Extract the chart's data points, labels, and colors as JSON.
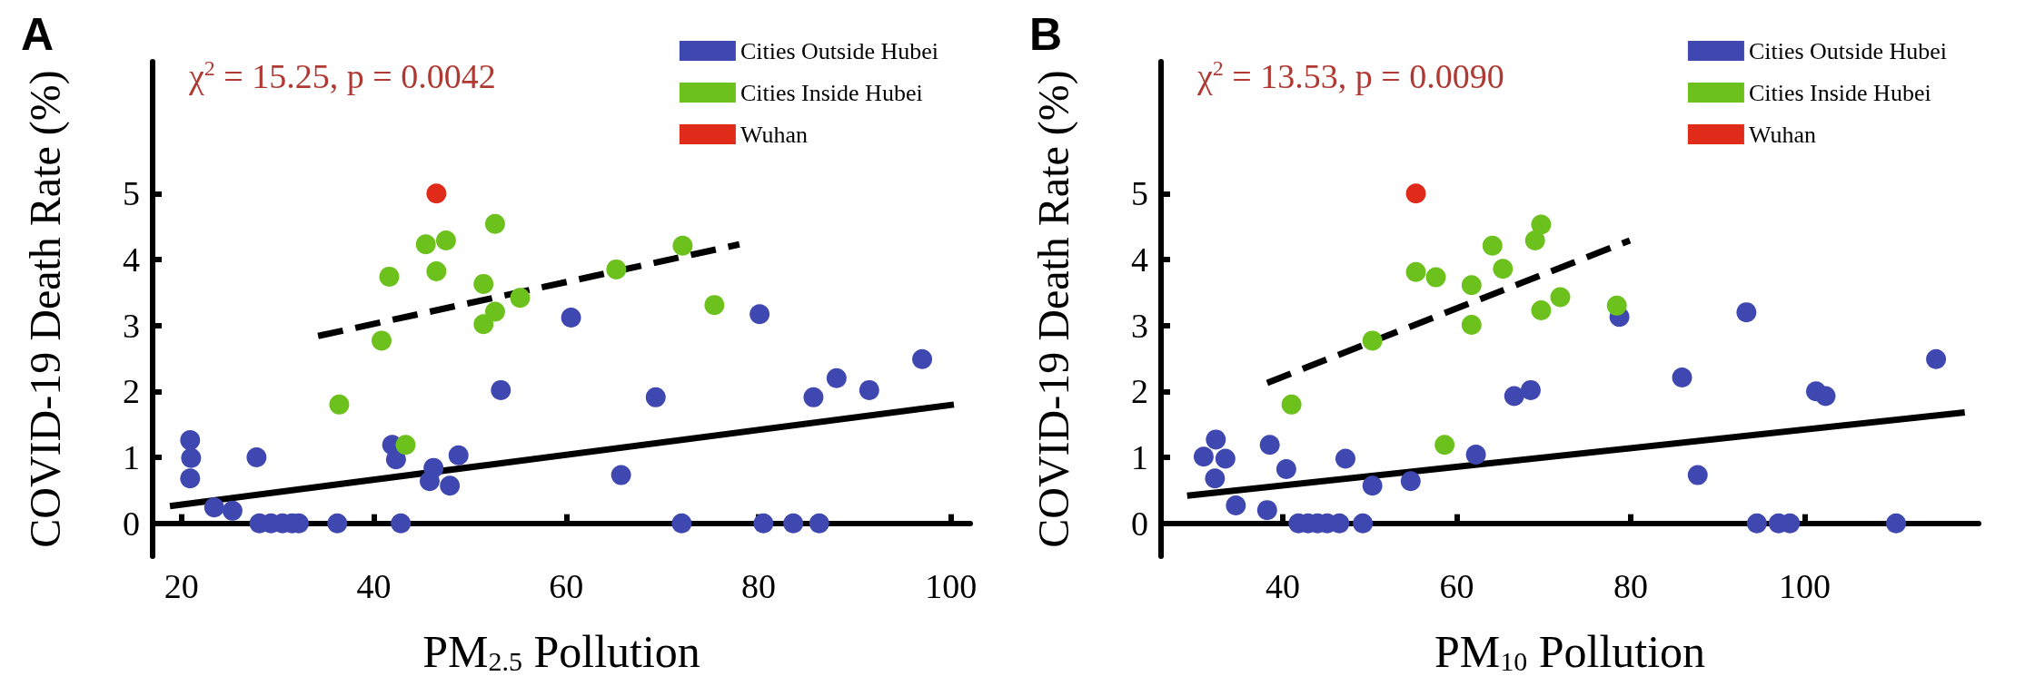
{
  "chart_data": [
    {
      "type": "scatter",
      "title": "A",
      "xlabel": "PM$_{2.5}$ Pollution",
      "ylabel": "COVID-19 Death Rate (%)",
      "annotations": [
        "χ$^{2}$ = 15.25, p = 0.0042"
      ],
      "xlim": [
        17,
        102
      ],
      "ylim": [
        -0.5,
        7
      ],
      "xticks": [
        20,
        40,
        60,
        80,
        100
      ],
      "yticks": [
        0,
        1,
        2,
        3,
        4,
        5
      ],
      "legend": "top right",
      "marker": "circle",
      "series": [
        {
          "name": "Cities Outside Hubei",
          "color": "#3f48b0",
          "x": [
            20.9,
            21.0,
            20.9,
            23.4,
            25.3,
            27.8,
            28.1,
            29.3,
            30.5,
            31.5,
            32.2,
            36.2,
            41.9,
            42.3,
            42.8,
            46.2,
            45.8,
            47.9,
            48.8,
            53.2,
            60.5,
            69.3,
            65.7,
            72.0,
            80.1,
            80.5,
            83.6,
            86.3,
            85.7,
            88.1,
            91.5,
            97.0
          ],
          "values": [
            1.26,
            0.99,
            0.68,
            0.24,
            0.19,
            1.0,
            0,
            0,
            0,
            0,
            0,
            0,
            1.19,
            0.97,
            0,
            0.84,
            0.64,
            0.57,
            1.03,
            2.02,
            3.12,
            1.91,
            0.73,
            0,
            3.17,
            0,
            0,
            0,
            1.91,
            2.2,
            2.02,
            2.49
          ]
        },
        {
          "name": "Cities Inside Hubei",
          "color": "#6cc11c",
          "x": [
            36.4,
            40.8,
            41.6,
            43.3,
            45.4,
            47.5,
            46.5,
            51.4,
            52.6,
            51.4,
            52.6,
            55.2,
            65.2,
            72.1,
            75.4
          ],
          "values": [
            1.8,
            2.77,
            3.74,
            1.19,
            4.23,
            4.29,
            3.82,
            3.63,
            4.54,
            3.02,
            3.21,
            3.42,
            3.85,
            4.21,
            3.31
          ]
        },
        {
          "name": "Wuhan",
          "color": "#e02a1a",
          "x": [
            46.5
          ],
          "values": [
            5.0
          ]
        },
        {
          "type": "line",
          "color": "#000000",
          "marker": "none",
          "line_style": "solid",
          "x": [
            18.8,
            100.3
          ],
          "values": [
            0.26,
            1.8
          ]
        },
        {
          "type": "line",
          "color": "#000000",
          "marker": "none",
          "line_style": "dashed",
          "x": [
            34.2,
            78.0
          ],
          "values": [
            2.84,
            4.23
          ]
        }
      ]
    },
    {
      "type": "scatter",
      "title": "B",
      "xlabel": "PM$_{10}$ Pollution",
      "ylabel": "COVID-19 Death Rate (%)",
      "annotations": [
        "χ$^{2}$ = 13.53, p = 0.0090"
      ],
      "xlim": [
        26,
        120
      ],
      "ylim": [
        -0.5,
        7
      ],
      "xticks": [
        40,
        60,
        80,
        100
      ],
      "yticks": [
        0,
        1,
        2,
        3,
        4,
        5
      ],
      "legend": "top right",
      "marker": "circle",
      "series": [
        {
          "name": "Cities Outside Hubei",
          "color": "#3f48b0",
          "x": [
            30.9,
            32.3,
            33.4,
            32.2,
            34.6,
            38.5,
            38.2,
            40.4,
            41.8,
            42.9,
            44.0,
            45.1,
            46.5,
            47.2,
            49.2,
            50.3,
            54.7,
            62.2,
            66.6,
            68.5,
            78.7,
            85.9,
            87.7,
            93.3,
            94.5,
            97.0,
            98.3,
            101.3,
            102.4,
            110.5,
            115.1
          ],
          "values": [
            1.01,
            1.27,
            0.98,
            0.68,
            0.27,
            1.19,
            0.2,
            0.82,
            0,
            0,
            0,
            0,
            0,
            0.98,
            0,
            0.57,
            0.64,
            1.04,
            1.93,
            2.02,
            3.13,
            2.21,
            0.73,
            3.2,
            0,
            0,
            0,
            2.0,
            1.93,
            0,
            2.49
          ]
        },
        {
          "name": "Cities Inside Hubei",
          "color": "#6cc11c",
          "x": [
            41.0,
            50.3,
            55.3,
            57.6,
            58.6,
            61.7,
            61.7,
            64.1,
            65.3,
            69.0,
            69.7,
            69.7,
            71.9,
            78.4
          ],
          "values": [
            1.8,
            2.77,
            3.81,
            3.73,
            1.19,
            3.61,
            3.01,
            4.21,
            3.86,
            4.29,
            4.53,
            3.23,
            3.43,
            3.3
          ]
        },
        {
          "name": "Wuhan",
          "color": "#e02a1a",
          "x": [
            55.3
          ],
          "values": [
            5.0
          ]
        },
        {
          "type": "line",
          "color": "#000000",
          "marker": "none",
          "line_style": "solid",
          "x": [
            29.0,
            118.4
          ],
          "values": [
            0.42,
            1.68
          ]
        },
        {
          "type": "line",
          "color": "#000000",
          "marker": "none",
          "line_style": "dashed",
          "x": [
            38.2,
            79.9
          ],
          "values": [
            2.13,
            4.29
          ]
        }
      ]
    }
  ]
}
